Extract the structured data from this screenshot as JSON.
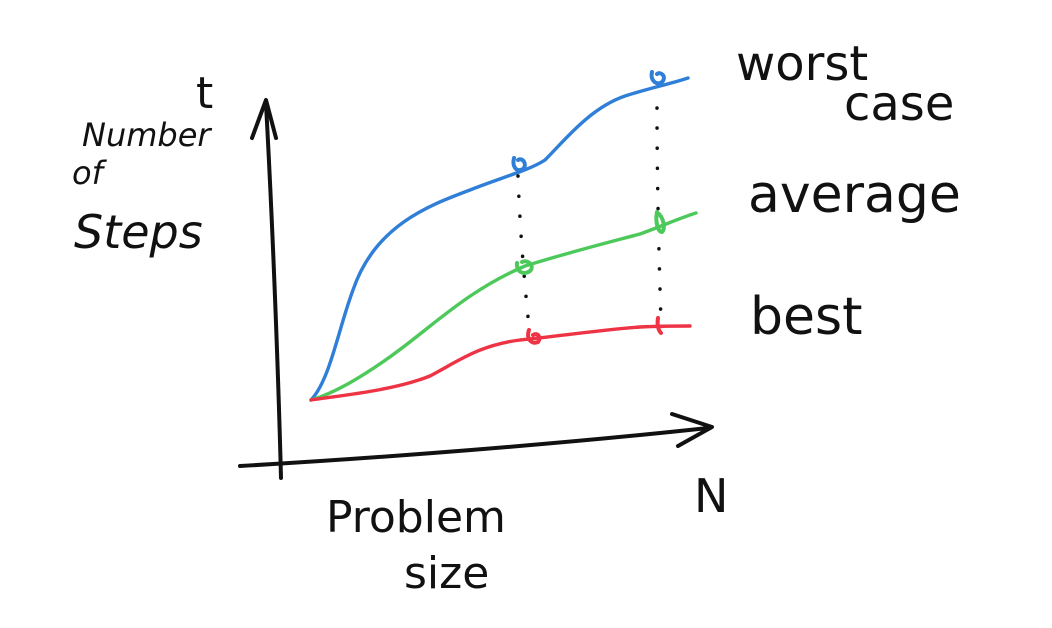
{
  "labels": {
    "y_symbol": "t",
    "y_axis_line1": "Number",
    "y_axis_line2": "of",
    "y_axis_line3": "Steps",
    "x_symbol": "N",
    "x_axis_line1": "Problem",
    "x_axis_line2": "size"
  },
  "series": [
    {
      "name": "worst case",
      "name_line1": "worst",
      "name_line2": "case",
      "color": "#2f7fd8"
    },
    {
      "name": "average",
      "color": "#4cc95a"
    },
    {
      "name": "best",
      "color": "#ee3344"
    }
  ],
  "style": {
    "ink": "#111111",
    "marker_link": "#111111"
  }
}
